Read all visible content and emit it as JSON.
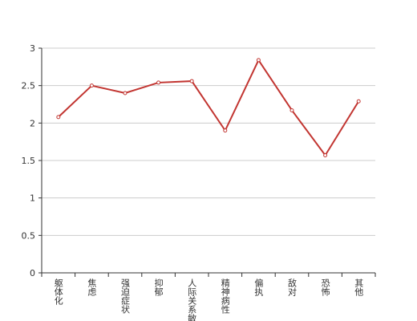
{
  "chart_data": {
    "type": "line",
    "categories": [
      "躯体化",
      "焦虑",
      "强迫症状",
      "抑郁",
      "人际关系敏感",
      "精神病性",
      "偏执",
      "敌对",
      "恐怖",
      "其他"
    ],
    "values": [
      2.08,
      2.5,
      2.4,
      2.54,
      2.56,
      1.9,
      2.84,
      2.17,
      1.57,
      2.29
    ],
    "color": "#c23531",
    "ylim": [
      0,
      3
    ],
    "yticks": [
      0,
      0.5,
      1,
      1.5,
      2,
      2.5,
      3
    ],
    "grid": true
  }
}
